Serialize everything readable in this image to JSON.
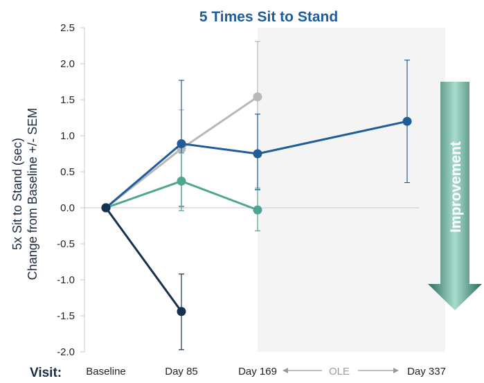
{
  "chart_data": {
    "type": "line",
    "title": "5 Times Sit to Stand",
    "ylabel_line1": "5x Sit to Stand (sec)",
    "ylabel_line2": "Change from Baseline +/- SEM",
    "xlabel": "Visit:",
    "categories": [
      "Baseline",
      "Day 85",
      "Day 169",
      "Day 337"
    ],
    "ylim": [
      -2.0,
      2.5
    ],
    "yticks": [
      "2.5",
      "2.0",
      "1.5",
      "1.0",
      "0.5",
      "0.0",
      "-0.5",
      "-1.0",
      "-1.5",
      "-2.0"
    ],
    "ole_label": "OLE",
    "improvement_label": "Improvement",
    "grid": false,
    "series": [
      {
        "color": "#b8b8b8",
        "points": [
          {
            "cat": 0,
            "y": 0.0
          },
          {
            "cat": 1,
            "y": 0.82,
            "lo": 0.0,
            "hi": 1.36
          },
          {
            "cat": 2,
            "y": 1.54,
            "lo": 0.28,
            "hi": 2.31
          }
        ]
      },
      {
        "color": "#1f5c9a",
        "points": [
          {
            "cat": 0,
            "y": 0.0
          },
          {
            "cat": 1,
            "y": 0.89,
            "lo": 0.02,
            "hi": 1.77
          },
          {
            "cat": 2,
            "y": 0.75,
            "lo": 0.25,
            "hi": 1.3
          },
          {
            "cat": 3,
            "y": 1.2,
            "lo": 0.35,
            "hi": 2.05
          }
        ]
      },
      {
        "color": "#4fa592",
        "points": [
          {
            "cat": 0,
            "y": 0.0
          },
          {
            "cat": 1,
            "y": 0.37,
            "lo": -0.04,
            "hi": 0.76
          },
          {
            "cat": 2,
            "y": -0.03,
            "lo": -0.32,
            "hi": 0.26
          }
        ]
      },
      {
        "color": "#16304f",
        "points": [
          {
            "cat": 0,
            "y": 0.0
          },
          {
            "cat": 1,
            "y": -1.44,
            "lo": -1.97,
            "hi": -0.92
          }
        ]
      }
    ]
  }
}
